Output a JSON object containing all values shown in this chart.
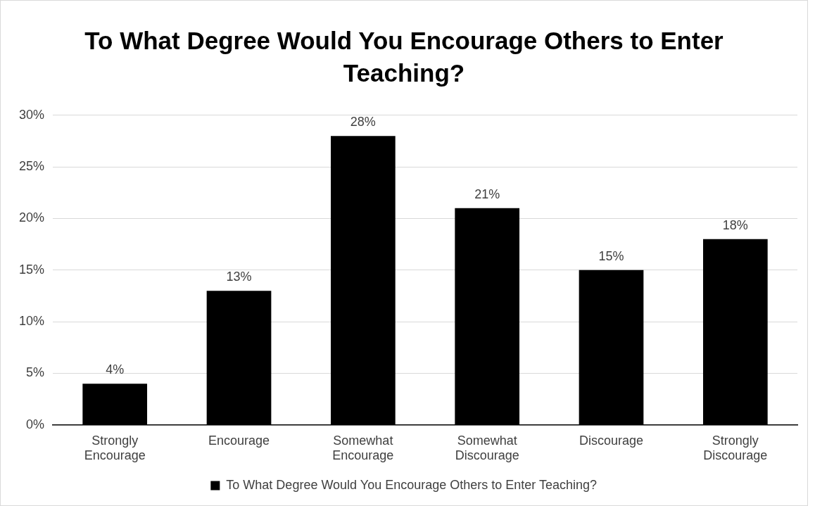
{
  "chart_data": {
    "type": "bar",
    "title": "To What Degree Would You Encourage Others to Enter Teaching?",
    "categories": [
      "Strongly Encourage",
      "Encourage",
      "Somewhat Encourage",
      "Somewhat Discourage",
      "Discourage",
      "Strongly Discourage"
    ],
    "series": [
      {
        "name": "To What Degree Would You Encourage Others to Enter Teaching?",
        "color": "#000000",
        "values": [
          4,
          13,
          28,
          21,
          15,
          18
        ],
        "value_labels": [
          "4%",
          "13%",
          "28%",
          "21%",
          "15%",
          "18%"
        ]
      }
    ],
    "ylim": [
      0,
      30
    ],
    "yticks": [
      {
        "value": 0,
        "label": "0%"
      },
      {
        "value": 5,
        "label": "5%"
      },
      {
        "value": 10,
        "label": "10%"
      },
      {
        "value": 15,
        "label": "15%"
      },
      {
        "value": 20,
        "label": "20%"
      },
      {
        "value": 25,
        "label": "25%"
      },
      {
        "value": 30,
        "label": "30%"
      }
    ],
    "grid": "y",
    "legend": "bottom"
  }
}
